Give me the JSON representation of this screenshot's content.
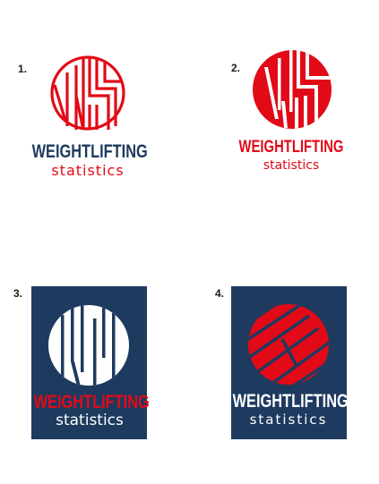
{
  "colors": {
    "red": "#e20a17",
    "navy": "#1e3a5f",
    "white": "#ffffff"
  },
  "variants": [
    {
      "number": "1.",
      "wordmark": "WEIGHTLIFTING",
      "tagline": "statistics",
      "monogram": "WS"
    },
    {
      "number": "2.",
      "wordmark": "WEIGHTLIFTING",
      "tagline": "statistics",
      "monogram": "WS"
    },
    {
      "number": "3.",
      "wordmark": "WEIGHTLIFTING",
      "tagline": "statistics",
      "monogram": "WS"
    },
    {
      "number": "4.",
      "wordmark": "WEIGHTLIFTING",
      "tagline": "statistics",
      "monogram": "WS"
    }
  ]
}
